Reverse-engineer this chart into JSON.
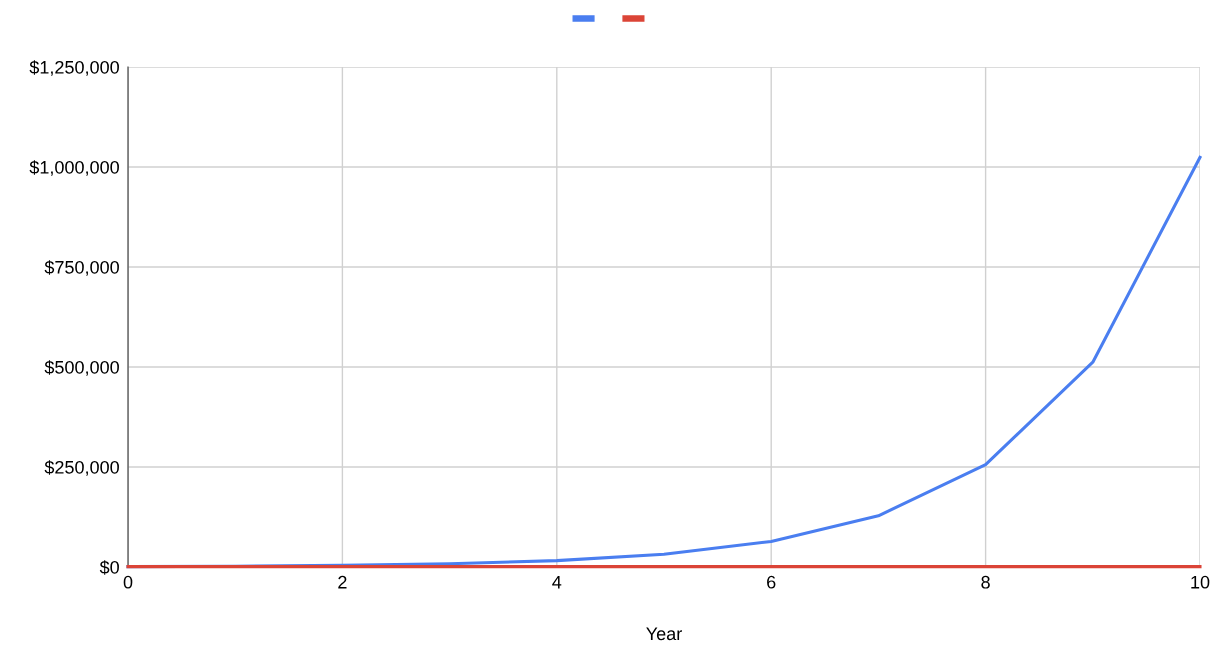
{
  "chart_data": {
    "type": "line",
    "xlabel": "Year",
    "x": [
      0,
      1,
      2,
      3,
      4,
      5,
      6,
      7,
      8,
      9,
      10
    ],
    "series": [
      {
        "color": "#4a7ef0",
        "values": [
          1000,
          2000,
          4000,
          8000,
          16000,
          32000,
          64000,
          128000,
          256000,
          512000,
          1024000
        ]
      },
      {
        "color": "#db4437",
        "values": [
          1000,
          1000,
          1000,
          1000,
          1000,
          1000,
          1000,
          1000,
          1000,
          1000,
          1000
        ]
      }
    ],
    "xlim": [
      0,
      10
    ],
    "xticks": [
      0,
      2,
      4,
      6,
      8,
      10
    ],
    "ylim": [
      0,
      1250000
    ],
    "yticks": [
      {
        "value": 0,
        "label": "$0"
      },
      {
        "value": 250000,
        "label": "$250,000"
      },
      {
        "value": 500000,
        "label": "$500,000"
      },
      {
        "value": 750000,
        "label": "$750,000"
      },
      {
        "value": 1000000,
        "label": "$1,000,000"
      },
      {
        "value": 1250000,
        "label": "$1,250,000"
      }
    ],
    "grid": true,
    "marker": "none",
    "line_style": "solid"
  }
}
